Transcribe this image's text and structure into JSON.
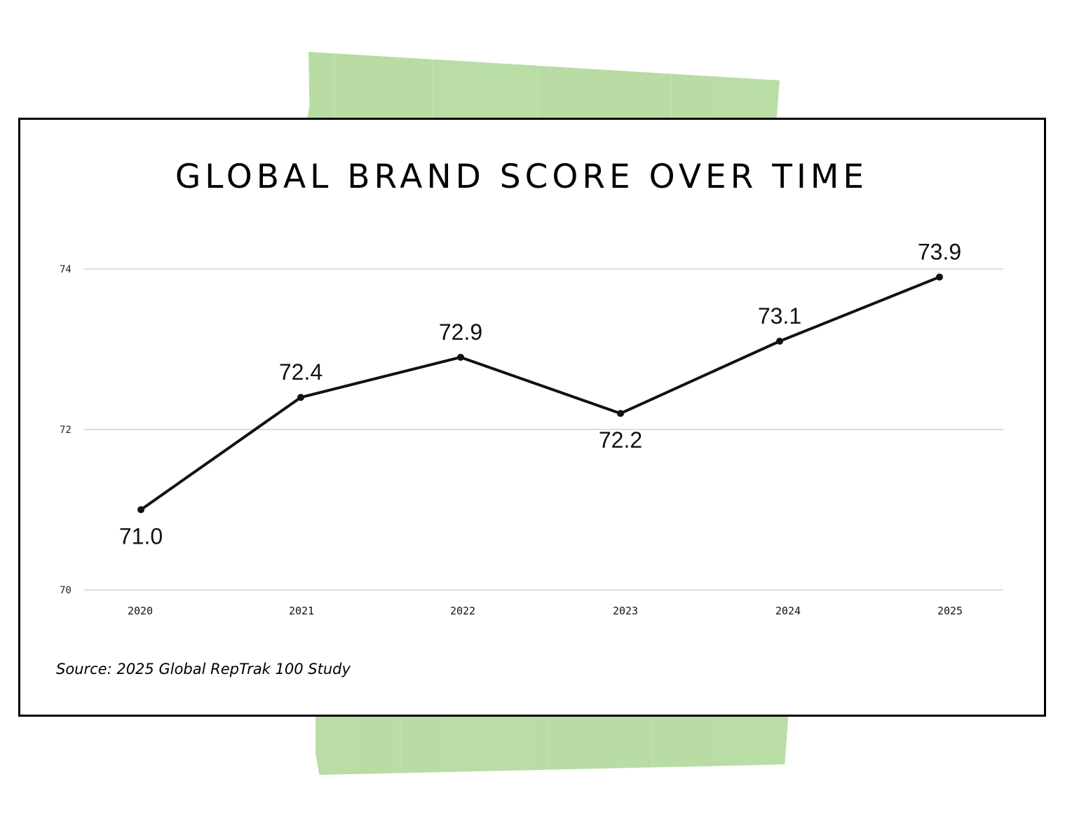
{
  "chart_data": {
    "type": "line",
    "title": "GLOBAL BRAND SCORE OVER TIME",
    "xlabel": "",
    "ylabel": "",
    "categories": [
      "2020",
      "2021",
      "2022",
      "2023",
      "2024",
      "2025"
    ],
    "values": [
      71.0,
      72.4,
      72.9,
      72.2,
      73.1,
      73.9
    ],
    "data_labels": [
      "71.0",
      "72.4",
      "72.9",
      "72.2",
      "73.1",
      "73.9"
    ],
    "label_positions": [
      "below",
      "above",
      "above",
      "below",
      "above",
      "above"
    ],
    "ylim": [
      70,
      74
    ],
    "yticks": [
      "70",
      "72",
      "74"
    ],
    "grid": true,
    "line_color": "#111111",
    "grid_color": "#dddddd"
  },
  "source": "Source: 2025 Global RepTrak 100 Study",
  "colors": {
    "tape": "#b5dba0",
    "border": "#000000",
    "background": "#ffffff"
  }
}
